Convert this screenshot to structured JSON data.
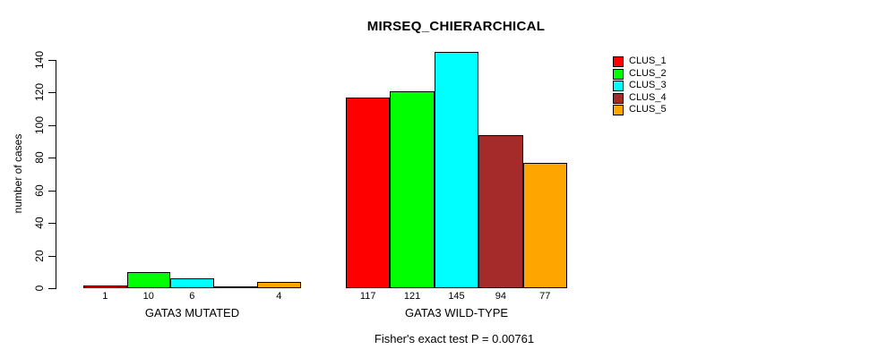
{
  "figure": {
    "background": "#ffffff"
  },
  "chart_data": {
    "type": "bar",
    "title": "MIRSEQ_CHIERARCHICAL",
    "xlabel": "",
    "ylabel": "number of cases",
    "ylim": [
      0,
      140
    ],
    "yticks": [
      "0",
      "20",
      "40",
      "60",
      "80",
      "100",
      "120",
      "140"
    ],
    "grid": false,
    "legend_position": "right-inside",
    "categories": [
      "GATA3 MUTATED",
      "GATA3 WILD-TYPE"
    ],
    "series": [
      {
        "name": "CLUS_1",
        "color": "#ff0000",
        "values": [
          1,
          117
        ]
      },
      {
        "name": "CLUS_2",
        "color": "#00ff00",
        "values": [
          10,
          121
        ]
      },
      {
        "name": "CLUS_3",
        "color": "#00ffff",
        "values": [
          6,
          145
        ]
      },
      {
        "name": "CLUS_4",
        "color": "#a52a2a",
        "values": [
          0,
          94
        ]
      },
      {
        "name": "CLUS_5",
        "color": "#ffa500",
        "values": [
          4,
          77
        ]
      }
    ],
    "bar_value_labels": [
      [
        "1",
        "10",
        "6",
        "",
        "4"
      ],
      [
        "117",
        "121",
        "145",
        "94",
        "77"
      ]
    ],
    "footnote": "Fisher's exact test P = 0.00761"
  }
}
